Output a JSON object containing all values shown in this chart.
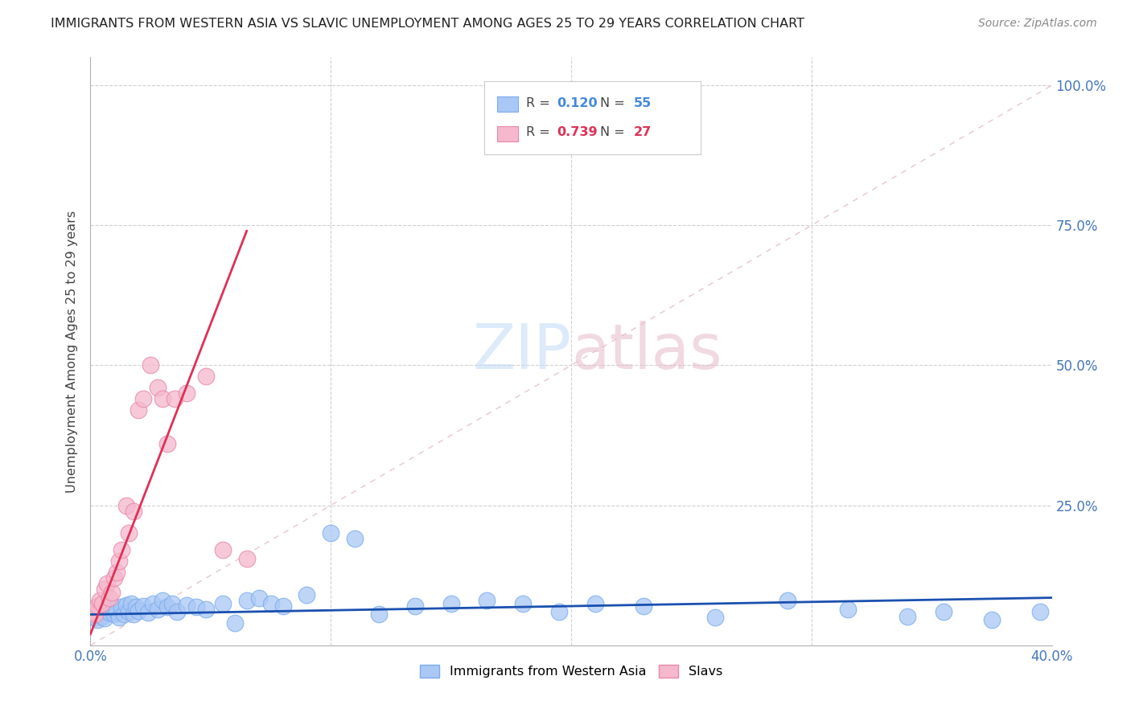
{
  "title": "IMMIGRANTS FROM WESTERN ASIA VS SLAVIC UNEMPLOYMENT AMONG AGES 25 TO 29 YEARS CORRELATION CHART",
  "source": "Source: ZipAtlas.com",
  "ylabel": "Unemployment Among Ages 25 to 29 years",
  "xlim": [
    0.0,
    0.4
  ],
  "ylim": [
    0.0,
    1.05
  ],
  "blue_color": "#aac8f5",
  "blue_edge": "#7aacee",
  "pink_color": "#f5b8cc",
  "pink_edge": "#e888a8",
  "trend_blue": "#1a50b0",
  "trend_pink": "#e03055",
  "diag_color": "#e0b8c0",
  "blue_scatter_x": [
    0.001,
    0.002,
    0.003,
    0.004,
    0.005,
    0.006,
    0.007,
    0.008,
    0.009,
    0.01,
    0.011,
    0.012,
    0.013,
    0.014,
    0.015,
    0.016,
    0.017,
    0.018,
    0.019,
    0.02,
    0.022,
    0.024,
    0.026,
    0.028,
    0.03,
    0.032,
    0.034,
    0.036,
    0.04,
    0.044,
    0.048,
    0.055,
    0.06,
    0.065,
    0.07,
    0.075,
    0.08,
    0.09,
    0.1,
    0.11,
    0.12,
    0.135,
    0.15,
    0.165,
    0.18,
    0.195,
    0.21,
    0.23,
    0.26,
    0.29,
    0.315,
    0.34,
    0.355,
    0.375,
    0.395
  ],
  "blue_scatter_y": [
    0.055,
    0.05,
    0.045,
    0.06,
    0.052,
    0.048,
    0.065,
    0.058,
    0.07,
    0.055,
    0.06,
    0.05,
    0.068,
    0.055,
    0.072,
    0.06,
    0.075,
    0.055,
    0.068,
    0.062,
    0.07,
    0.058,
    0.075,
    0.065,
    0.08,
    0.068,
    0.075,
    0.06,
    0.072,
    0.068,
    0.065,
    0.075,
    0.04,
    0.08,
    0.085,
    0.075,
    0.07,
    0.09,
    0.2,
    0.19,
    0.055,
    0.07,
    0.075,
    0.08,
    0.075,
    0.06,
    0.075,
    0.07,
    0.05,
    0.08,
    0.065,
    0.052,
    0.06,
    0.045,
    0.06
  ],
  "pink_scatter_x": [
    0.001,
    0.002,
    0.003,
    0.004,
    0.005,
    0.006,
    0.007,
    0.008,
    0.009,
    0.01,
    0.011,
    0.012,
    0.013,
    0.015,
    0.016,
    0.018,
    0.02,
    0.022,
    0.025,
    0.028,
    0.03,
    0.032,
    0.035,
    0.04,
    0.048,
    0.055,
    0.065
  ],
  "pink_scatter_y": [
    0.06,
    0.055,
    0.07,
    0.08,
    0.075,
    0.1,
    0.11,
    0.085,
    0.095,
    0.12,
    0.13,
    0.15,
    0.17,
    0.25,
    0.2,
    0.24,
    0.42,
    0.44,
    0.5,
    0.46,
    0.44,
    0.36,
    0.44,
    0.45,
    0.48,
    0.17,
    0.155
  ],
  "pink_trend_x0": 0.0,
  "pink_trend_x1": 0.065,
  "pink_trend_y0": 0.02,
  "pink_trend_y1": 0.74,
  "blue_trend_x0": 0.0,
  "blue_trend_x1": 0.4,
  "blue_trend_y0": 0.055,
  "blue_trend_y1": 0.085
}
